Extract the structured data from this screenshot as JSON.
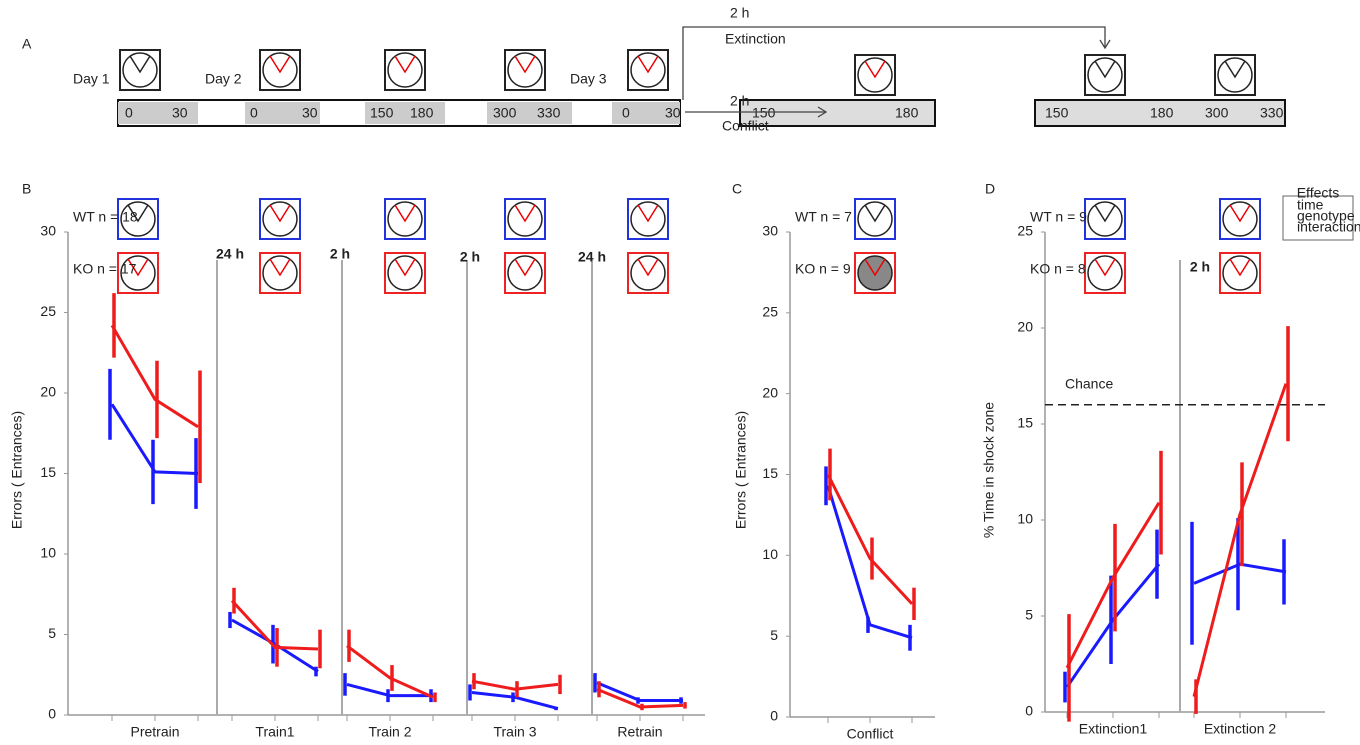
{
  "panel_a": {
    "label": "A",
    "days": [
      "Day 1",
      "Day 2",
      "Day 3"
    ],
    "timeline": [
      0,
      30,
      0,
      30,
      150,
      180,
      300,
      330,
      0,
      30
    ],
    "top_arrow": {
      "time": "2 h",
      "label": "Extinction"
    },
    "bottom_arrow": {
      "time": "2 h",
      "label": "Conflict"
    },
    "conflict_timeline": [
      150,
      180
    ],
    "extinction_timeline": [
      150,
      180,
      300,
      330
    ]
  },
  "chart_data": [
    {
      "type": "line",
      "label": "B",
      "ylabel": "Errors ( Entrances)",
      "ylim": [
        0,
        30
      ],
      "yticks": [
        0,
        5,
        10,
        15,
        20,
        25,
        30
      ],
      "categories": [
        "Pretrain",
        "Train1",
        "Train 2",
        "Train 3",
        "Retrain"
      ],
      "separators": [
        "24 h",
        "2 h",
        "2 h",
        "24 h"
      ],
      "series": [
        {
          "name": "WT n = 18",
          "color": "#1a1aff",
          "values": [
            [
              19.3,
              15.1,
              15.0
            ],
            [
              5.9,
              4.4,
              2.7
            ],
            [
              1.9,
              1.2,
              1.2
            ],
            [
              1.4,
              1.1,
              0.4
            ],
            [
              2.0,
              0.9,
              0.9
            ]
          ],
          "errors": [
            [
              2.2,
              2.0,
              2.2
            ],
            [
              0.5,
              1.2,
              0.3
            ],
            [
              0.7,
              0.4,
              0.4
            ],
            [
              0.5,
              0.3,
              0.1
            ],
            [
              0.6,
              0.2,
              0.2
            ]
          ]
        },
        {
          "name": "KO n = 17",
          "color": "#ee1c1c",
          "values": [
            [
              24.2,
              19.6,
              17.9
            ],
            [
              7.1,
              4.2,
              4.1
            ],
            [
              4.3,
              2.3,
              1.1
            ],
            [
              2.1,
              1.6,
              1.9
            ],
            [
              1.6,
              0.5,
              0.6
            ]
          ],
          "errors": [
            [
              2.0,
              2.4,
              3.5
            ],
            [
              0.8,
              1.2,
              1.2
            ],
            [
              1.0,
              0.8,
              0.3
            ],
            [
              0.5,
              0.5,
              0.6
            ],
            [
              0.5,
              0.2,
              0.2
            ]
          ]
        }
      ]
    },
    {
      "type": "line",
      "label": "C",
      "ylabel": "Errors ( Entrances)",
      "ylim": [
        0,
        30
      ],
      "yticks": [
        0,
        5,
        10,
        15,
        20,
        25,
        30
      ],
      "categories": [
        "Conflict"
      ],
      "separators": [],
      "series": [
        {
          "name": "WT n = 7",
          "color": "#1a1aff",
          "values": [
            [
              14.3,
              5.7,
              4.9
            ]
          ],
          "errors": [
            [
              1.2,
              0.5,
              0.8
            ]
          ]
        },
        {
          "name": "KO n = 9",
          "color": "#ee1c1c",
          "values": [
            [
              15.0,
              9.8,
              7.0
            ]
          ],
          "errors": [
            [
              1.6,
              1.3,
              1.0
            ]
          ]
        }
      ]
    },
    {
      "type": "line",
      "label": "D",
      "ylabel": "% Time in shock zone",
      "ylim": [
        0,
        25
      ],
      "yticks": [
        0,
        5,
        10,
        15,
        20,
        25
      ],
      "categories": [
        "Extinction1",
        "Extinction 2"
      ],
      "separators": [
        "2 h"
      ],
      "hline": {
        "value": 16,
        "label": "Chance"
      },
      "effects": {
        "title": "Effects",
        "items": [
          "time",
          "genotype",
          "interaction"
        ]
      },
      "series": [
        {
          "name": "WT n = 9",
          "color": "#1a1aff",
          "values": [
            [
              1.3,
              4.8,
              7.7
            ],
            [
              6.7,
              7.7,
              7.3
            ]
          ],
          "errors": [
            [
              0.8,
              2.3,
              1.8
            ],
            [
              3.2,
              2.4,
              1.7
            ]
          ]
        },
        {
          "name": "KO n = 8",
          "color": "#ee1c1c",
          "values": [
            [
              2.3,
              7.0,
              10.9
            ],
            [
              0.8,
              10.3,
              17.1
            ]
          ],
          "errors": [
            [
              2.8,
              2.8,
              2.7
            ],
            [
              0.9,
              2.7,
              3.0
            ]
          ]
        }
      ]
    }
  ]
}
